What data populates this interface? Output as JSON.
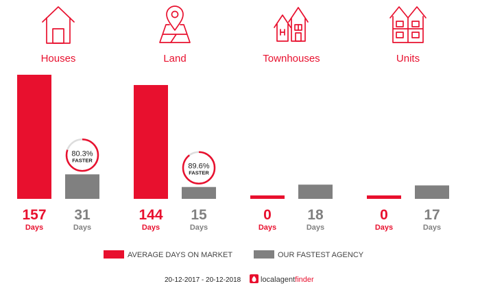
{
  "colors": {
    "accent": "#e8102e",
    "gray": "#808080"
  },
  "categories": [
    {
      "label": "Houses",
      "icon": "house-icon"
    },
    {
      "label": "Land",
      "icon": "map-pin-icon"
    },
    {
      "label": "Townhouses",
      "icon": "townhouses-icon"
    },
    {
      "label": "Units",
      "icon": "units-icon"
    }
  ],
  "chart_data": {
    "type": "bar",
    "categories": [
      "Houses",
      "Land",
      "Townhouses",
      "Units"
    ],
    "series": [
      {
        "name": "AVERAGE DAYS ON MARKET",
        "values": [
          157,
          144,
          0,
          0
        ],
        "color": "#e8102e"
      },
      {
        "name": "OUR FASTEST AGENCY",
        "values": [
          31,
          15,
          18,
          17
        ],
        "color": "#808080"
      }
    ],
    "value_unit": "Days",
    "faster": [
      {
        "category": "Houses",
        "percent": 0.803,
        "text": "80.3%",
        "label": "FASTER"
      },
      {
        "category": "Land",
        "percent": 0.896,
        "text": "89.6%",
        "label": "FASTER"
      }
    ],
    "ylim": [
      0,
      157
    ],
    "grid": false,
    "legend": "bottom"
  },
  "footer": {
    "date_range": "20-12-2017 - 20-12-2018",
    "brand_local": "localagent",
    "brand_finder": "finder"
  }
}
